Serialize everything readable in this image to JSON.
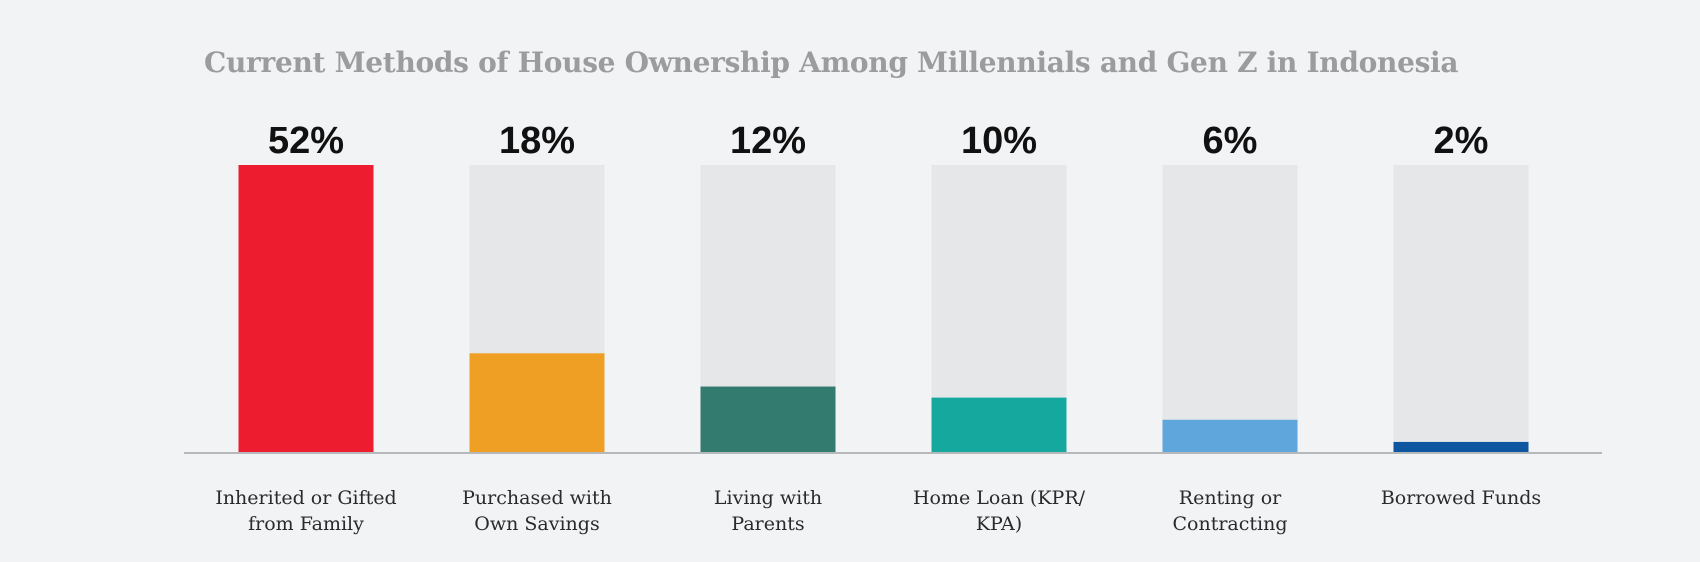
{
  "chart_data": {
    "type": "bar",
    "title": "Current Methods of House Ownership Among Millennials and Gen Z in Indonesia",
    "categories": [
      [
        "Inherited or Gifted",
        "from Family"
      ],
      [
        "Purchased with",
        "Own Savings"
      ],
      [
        "Living with",
        "Parents"
      ],
      [
        "Home Loan (KPR/",
        "KPA)"
      ],
      [
        "Renting or",
        "Contracting"
      ],
      [
        "Borrowed Funds"
      ]
    ],
    "values": [
      52,
      18,
      12,
      10,
      6,
      2
    ],
    "value_labels": [
      "52%",
      "18%",
      "12%",
      "10%",
      "6%",
      "2%"
    ],
    "ylim": [
      0,
      52
    ],
    "grid": false,
    "legend": "none",
    "colors": [
      "#ed1c2e",
      "#ef9f24",
      "#337b6e",
      "#14a89e",
      "#5ea6dc",
      "#0e56a0"
    ],
    "track_color": "#e6e7e8",
    "baseline_color": "#b7b8ba"
  }
}
